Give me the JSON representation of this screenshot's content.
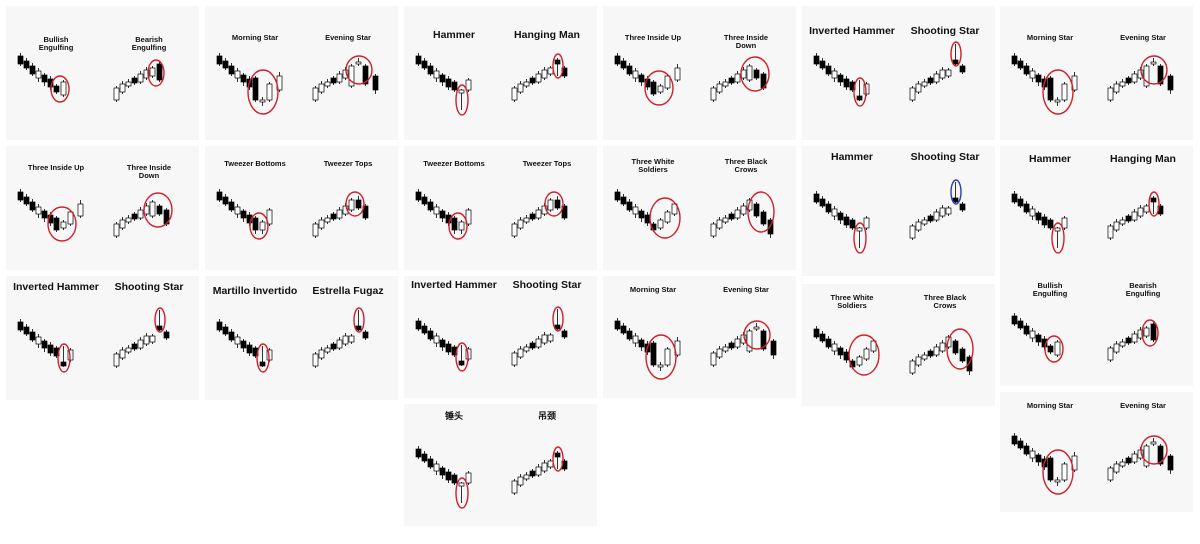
{
  "cards": [
    {
      "labels": [
        "Bullish Engulfing",
        "Bearish Engulfing"
      ]
    },
    {
      "labels": [
        "Morning Star",
        "Evening Star"
      ]
    },
    {
      "labels": [
        "Hammer",
        "Hanging Man"
      ]
    },
    {
      "labels": [
        "Three Inside Up",
        "Three Inside Down"
      ]
    },
    {
      "labels": [
        "Inverted Hammer",
        "Shooting Star"
      ]
    },
    {
      "labels": [
        "Morning Star",
        "Evening Star"
      ]
    },
    {
      "labels": [
        "Three Inside Up",
        "Three Inside Down"
      ]
    },
    {
      "labels": [
        "Tweezer Bottoms",
        "Tweezer Tops"
      ]
    },
    {
      "labels": [
        "Tweezer Bottoms",
        "Tweezer Tops"
      ]
    },
    {
      "labels": [
        "Three White Soldiers",
        "Three Black Crows"
      ]
    },
    {
      "labels": [
        "Hammer",
        "Shooting Star"
      ]
    },
    {
      "labels": [
        "Hammer",
        "Hanging Man"
      ]
    },
    {
      "labels": [
        "Inverted Hammer",
        "Shooting Star"
      ]
    },
    {
      "labels": [
        "Martillo Invertido",
        "Estrella Fugaz"
      ]
    },
    {
      "labels": [
        "Inverted Hammer",
        "Shooting Star"
      ]
    },
    {
      "labels": [
        "Morning Star",
        "Evening Star"
      ]
    },
    {
      "labels": [
        "Three White Soldiers",
        "Three Black Crows"
      ]
    },
    {
      "labels": [
        "Bullish Engulfing",
        "Bearish Engulfing"
      ]
    },
    {
      "labels": [
        "锤头",
        "吊颈"
      ]
    },
    {
      "labels": [
        "Morning Star",
        "Evening Star"
      ]
    }
  ],
  "colors": {
    "highlight": "#d21f2b",
    "highlight_alt": "#2a3db3",
    "candle_dark": "#000000",
    "candle_light": "#ffffff",
    "card_bg": "#f7f7f7"
  }
}
